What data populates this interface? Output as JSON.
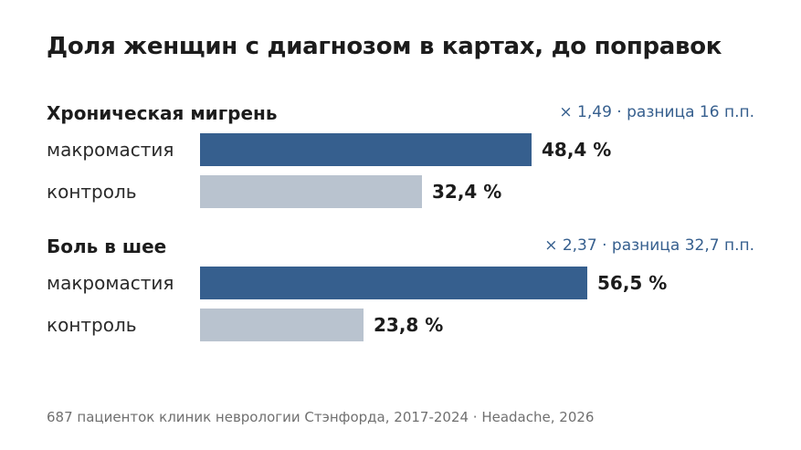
{
  "title": "Доля женщин с диагнозом в картах, до поправок",
  "footer": "687 пациенток клиник неврологии Стэнфорда, 2017-2024 · Headache, 2026",
  "colors": {
    "primary": "#365f8e",
    "secondary": "#b9c3cf",
    "note": "#365f8e"
  },
  "chart_data": {
    "type": "bar",
    "orientation": "horizontal",
    "unit": "%",
    "groups": [
      {
        "title": "Хроническая мигрень",
        "note": "× 1,49 · разница 16 п.п.",
        "bars": [
          {
            "label": "макромастия",
            "value": 48.4,
            "value_label": "48,4 %"
          },
          {
            "label": "контроль",
            "value": 32.4,
            "value_label": "32,4 %"
          }
        ]
      },
      {
        "title": "Боль в шее",
        "note": "× 2,37 · разница 32,7 п.п.",
        "bars": [
          {
            "label": "макромастия",
            "value": 56.5,
            "value_label": "56,5 %"
          },
          {
            "label": "контроль",
            "value": 23.8,
            "value_label": "23,8 %"
          }
        ]
      }
    ]
  }
}
